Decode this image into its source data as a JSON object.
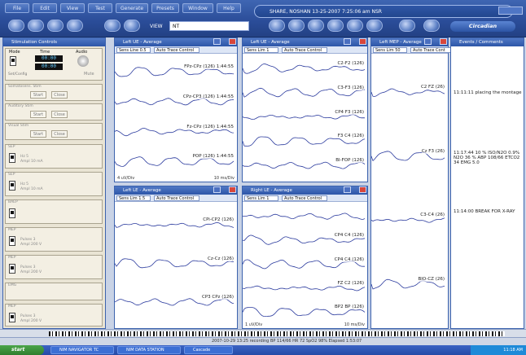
{
  "menu": [
    "File",
    "Edit",
    "View",
    "Test",
    "Generate",
    "Presets",
    "Window",
    "Help"
  ],
  "title_bar": "SHARE, NOSHAN 13-25-2007 7:25:06 am NSR",
  "logo_text": "Circadian",
  "view": {
    "label": "VIEW",
    "value": "NT"
  },
  "left_panel": {
    "title": "Stimulation Controls",
    "mode_label": "Mode",
    "time_label": "Time",
    "audio_label": "Audio",
    "time_value_1": "00:00",
    "time_value_2": "00:00",
    "mute_label": "Mute",
    "set_label": "Set/Config",
    "start_label": "Start",
    "close_label": "Close",
    "slots": [
      {
        "name": "Somatosens. Stim",
        "a": "Start",
        "b": "Close"
      },
      {
        "name": "Auditory Stim",
        "a": "Start",
        "b": "Close"
      },
      {
        "name": "Visual Stim",
        "a": "Start",
        "b": "Close"
      },
      {
        "name": "SEP",
        "line1": "Hz 5",
        "line2": "Ampl 10 mA"
      },
      {
        "name": "SEP",
        "line1": "Hz 5",
        "line2": "Ampl 10 mA"
      },
      {
        "name": "BAEP",
        "line1": "",
        "line2": ""
      },
      {
        "name": "MEP",
        "line1": "Pulses 3",
        "line2": "Ampl 200 V"
      },
      {
        "name": "MEP",
        "line1": "Pulses 3",
        "line2": "Ampl 200 V"
      },
      {
        "name": "EMG",
        "line1": "",
        "line2": ""
      },
      {
        "name": "MEP",
        "line1": "Pulses 3",
        "line2": "Ampl 200 V"
      }
    ]
  },
  "windows": [
    {
      "title": "Left UE - Average",
      "selector": "Sens Line 0.5",
      "mode": "Auto Trace Control",
      "traces": [
        "FPz-CPz (126) 1:44:55",
        "CPz-CP3 (126) 1:44:55",
        "Fz-CPz (126) 1:44:55",
        "POP (126) 1:44:55"
      ],
      "foot_left": "4 uV/Div",
      "foot_right": "10 ms/Div"
    },
    {
      "title": "Left UE - Average",
      "selector": "Sens Lim 1",
      "mode": "Auto Trace Control",
      "traces": [
        "C2-F2 (126)",
        "C3-F3 (126)",
        "CP4 F3 (126)",
        "F3 C4 (126)",
        "BI-FOP (126)"
      ],
      "foot_left": "",
      "foot_right": ""
    },
    {
      "title": "Left MEP - Average",
      "selector": "Sens Lim 50",
      "mode": "Auto Trace Cont",
      "traces": [
        "C2 FZ (26)",
        "Cz F3 (26)",
        "C3-C4 (26)",
        "BIO-CZ (26)"
      ],
      "foot_left": "",
      "foot_right": ""
    },
    {
      "title": "Left LE - Average",
      "selector": "Sens Lim 1.5",
      "mode": "Auto Trace Control",
      "traces": [
        "CPi-CP2 (126)",
        "Cz-Cz (126)",
        "CP3 CPz (126)"
      ],
      "foot_left": "",
      "foot_right": ""
    },
    {
      "title": "Right LE - Average",
      "selector": "Sens Lim 1",
      "mode": "Auto Trace Control",
      "traces": [
        "",
        "CP4 C4 (126)",
        "CP4 C4 (126)",
        "FZ C2 (126)",
        "BP2 BP (126)"
      ],
      "foot_left": "1 uV/Div",
      "foot_right": "10 ms/Div"
    }
  ],
  "right_panel": {
    "title": "Events / Comments",
    "notes": [
      {
        "time": "11:11:11",
        "text": "placing the montage"
      },
      {
        "time": "11:17:44",
        "text": "10 % ISO/N2O 0.9% N2O 36 % ABP 108/66 ETCO2 34 EMG 5.0"
      },
      {
        "time": "11:14:00",
        "text": "BREAK FOR X-RAY"
      }
    ]
  },
  "status_text": "2007-10-29 13:25 recording     BP 114/66 HR 72 SpO2 98%     Elapsed 1:53:07",
  "taskbar": {
    "start": "start",
    "tasks": [
      "NIM NAVIGATOR TC",
      "NIM DATA STATION",
      "Cascade"
    ],
    "clock": "11:18 AM"
  },
  "colors": {
    "accent": "#2d56a8",
    "trace": "#2b3b9e"
  }
}
